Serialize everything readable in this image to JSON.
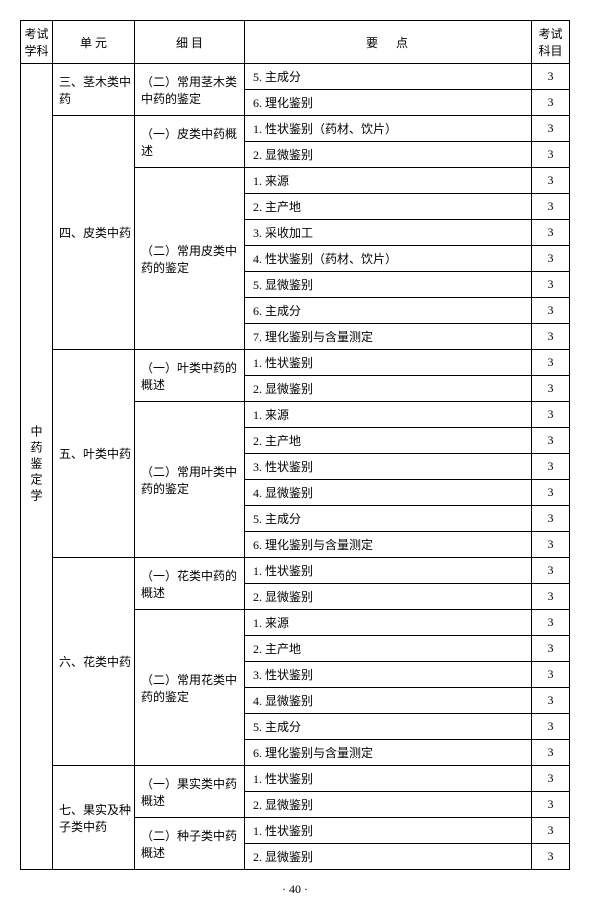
{
  "headers": {
    "subject": "考试学科",
    "unit": "单 元",
    "detail": "细 目",
    "point": "要点",
    "exam": "考试科目"
  },
  "subject": "中药鉴定学",
  "units": [
    {
      "name": "三、茎木类中药",
      "detail": "（二）常用茎木类中药的鉴定",
      "points": [
        "5. 主成分",
        "6. 理化鉴别"
      ],
      "exams": [
        "3",
        "3"
      ]
    },
    {
      "name": "四、皮类中药",
      "details": [
        {
          "name": "（一）皮类中药概述",
          "points": [
            "1. 性状鉴别（药材、饮片）",
            "2. 显微鉴别"
          ],
          "exams": [
            "3",
            "3"
          ]
        },
        {
          "name": "（二）常用皮类中药的鉴定",
          "points": [
            "1. 来源",
            "2. 主产地",
            "3. 采收加工",
            "4. 性状鉴别（药材、饮片）",
            "5. 显微鉴别",
            "6. 主成分",
            "7. 理化鉴别与含量测定"
          ],
          "exams": [
            "3",
            "3",
            "3",
            "3",
            "3",
            "3",
            "3"
          ]
        }
      ]
    },
    {
      "name": "五、叶类中药",
      "details": [
        {
          "name": "（一）叶类中药的概述",
          "points": [
            "1. 性状鉴别",
            "2. 显微鉴别"
          ],
          "exams": [
            "3",
            "3"
          ]
        },
        {
          "name": "（二）常用叶类中药的鉴定",
          "points": [
            "1. 来源",
            "2. 主产地",
            "3. 性状鉴别",
            "4. 显微鉴别",
            "5. 主成分",
            "6. 理化鉴别与含量测定"
          ],
          "exams": [
            "3",
            "3",
            "3",
            "3",
            "3",
            "3"
          ]
        }
      ]
    },
    {
      "name": "六、花类中药",
      "details": [
        {
          "name": "（一）花类中药的概述",
          "points": [
            "1. 性状鉴别",
            "2. 显微鉴别"
          ],
          "exams": [
            "3",
            "3"
          ]
        },
        {
          "name": "（二）常用花类中药的鉴定",
          "points": [
            "1. 来源",
            "2. 主产地",
            "3. 性状鉴别",
            "4. 显微鉴别",
            "5. 主成分",
            "6. 理化鉴别与含量测定"
          ],
          "exams": [
            "3",
            "3",
            "3",
            "3",
            "3",
            "3"
          ]
        }
      ]
    },
    {
      "name": "七、果实及种子类中药",
      "details": [
        {
          "name": "（一）果实类中药概述",
          "points": [
            "1. 性状鉴别",
            "2. 显微鉴别"
          ],
          "exams": [
            "3",
            "3"
          ]
        },
        {
          "name": "（二）种子类中药概述",
          "points": [
            "1. 性状鉴别",
            "2. 显微鉴别"
          ],
          "exams": [
            "3",
            "3"
          ]
        }
      ]
    }
  ],
  "pageNum": "· 40 ·",
  "totalRows": 31
}
